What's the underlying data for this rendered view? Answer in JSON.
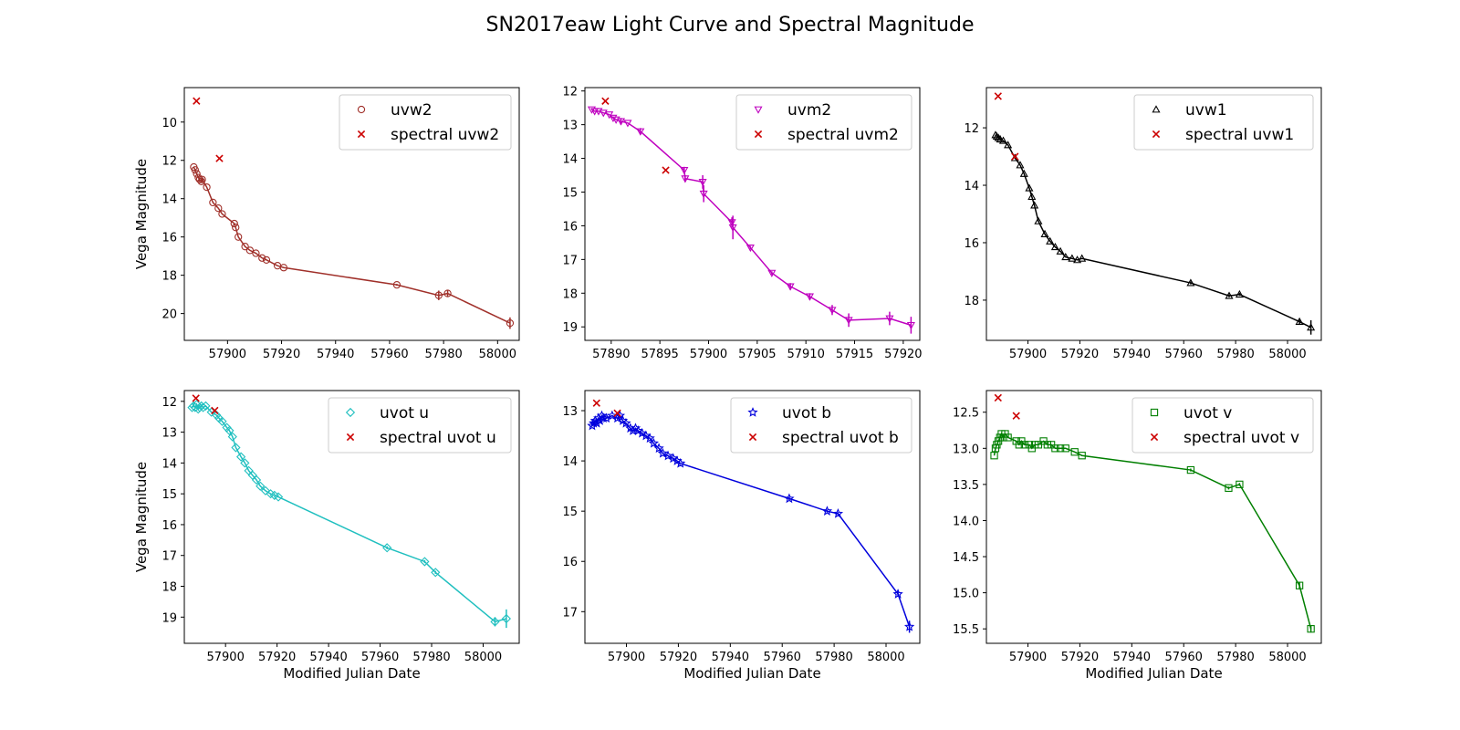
{
  "figure": {
    "title": "SN2017eaw Light Curve and Spectral Magnitude"
  },
  "chart_data": [
    {
      "type": "line",
      "xlabel": "",
      "ylabel": "Vega Magnitude",
      "xlim": [
        57884,
        58008
      ],
      "ylim": [
        21.4,
        8.2
      ],
      "y_inverted": true,
      "xticks": [
        57900,
        57920,
        57940,
        57960,
        57980,
        58000
      ],
      "yticks": [
        10,
        12,
        14,
        16,
        18,
        20
      ],
      "legend_position": "top-right",
      "series": [
        {
          "name": "uvw2",
          "color": "#a0302a",
          "marker": "circle",
          "x": [
            57887.5,
            57888.0,
            57888.6,
            57889.2,
            57889.7,
            57890.3,
            57890.6,
            57892.3,
            57894.6,
            57896.6,
            57898.0,
            57902.5,
            57903.0,
            57904.0,
            57906.5,
            57908.3,
            57910.5,
            57912.8,
            57914.4,
            57918.5,
            57920.8,
            57962.7,
            57978.2,
            57981.5,
            58004.6
          ],
          "y": [
            12.35,
            12.5,
            12.7,
            12.9,
            13.0,
            13.1,
            13.0,
            13.4,
            14.2,
            14.5,
            14.8,
            15.3,
            15.5,
            16.0,
            16.5,
            16.7,
            16.85,
            17.1,
            17.2,
            17.5,
            17.6,
            18.5,
            19.05,
            18.95,
            20.5
          ],
          "yerr": [
            0,
            0,
            0,
            0,
            0,
            0,
            0,
            0,
            0,
            0,
            0,
            0,
            0,
            0,
            0,
            0,
            0,
            0,
            0,
            0,
            0,
            0.05,
            0.25,
            0.15,
            0.3
          ]
        },
        {
          "name": "spectral uvw2",
          "color": "#cc0000",
          "marker": "x",
          "x": [
            57888.5,
            57897.0
          ],
          "y": [
            8.9,
            11.9
          ]
        }
      ]
    },
    {
      "type": "line",
      "xlabel": "",
      "ylabel": "",
      "xlim": [
        57887.3,
        57921.7
      ],
      "ylim": [
        19.4,
        11.9
      ],
      "y_inverted": true,
      "xticks": [
        57890,
        57895,
        57900,
        57905,
        57910,
        57915,
        57920
      ],
      "yticks": [
        12,
        13,
        14,
        15,
        16,
        17,
        18,
        19
      ],
      "legend_position": "top-right",
      "series": [
        {
          "name": "uvm2",
          "color": "#bf00bf",
          "marker": "triangle-down",
          "x": [
            57888.0,
            57888.3,
            57888.7,
            57889.2,
            57889.8,
            57890.2,
            57890.5,
            57891.0,
            57891.7,
            57893.0,
            57897.5,
            57897.6,
            57899.4,
            57899.5,
            57902.4,
            57902.5,
            57904.3,
            57906.5,
            57908.4,
            57910.4,
            57912.7,
            57914.4,
            57918.6,
            57920.8
          ],
          "y": [
            12.55,
            12.6,
            12.6,
            12.65,
            12.7,
            12.8,
            12.85,
            12.9,
            12.95,
            13.2,
            14.35,
            14.6,
            14.7,
            15.05,
            15.9,
            16.05,
            16.65,
            17.4,
            17.8,
            18.1,
            18.5,
            18.8,
            18.75,
            18.95
          ],
          "yerr": [
            0,
            0,
            0,
            0,
            0,
            0,
            0,
            0.1,
            0,
            0.1,
            0.1,
            0.1,
            0.2,
            0.25,
            0.15,
            0.35,
            0.05,
            0.05,
            0.1,
            0.1,
            0.15,
            0.2,
            0.2,
            0.25
          ]
        },
        {
          "name": "spectral uvm2",
          "color": "#cc0000",
          "marker": "x",
          "x": [
            57889.4,
            57895.6
          ],
          "y": [
            12.3,
            14.35
          ]
        }
      ]
    },
    {
      "type": "line",
      "xlabel": "",
      "ylabel": "",
      "xlim": [
        57884,
        58013
      ],
      "ylim": [
        19.4,
        10.6
      ],
      "y_inverted": true,
      "xticks": [
        57900,
        57920,
        57940,
        57960,
        57980,
        58000
      ],
      "yticks": [
        12,
        14,
        16,
        18
      ],
      "legend_position": "top-right",
      "series": [
        {
          "name": "uvw1",
          "color": "#000000",
          "marker": "triangle-up",
          "x": [
            57887.5,
            57888.0,
            57888.6,
            57889.3,
            57890.5,
            57892.3,
            57895.0,
            57897.0,
            57898.5,
            57900.5,
            57901.5,
            57902.5,
            57904.0,
            57906.5,
            57908.5,
            57910.5,
            57912.5,
            57914.5,
            57917.0,
            57919.0,
            57920.8,
            57962.7,
            57977.5,
            57981.5,
            58004.6,
            58009.0
          ],
          "y": [
            12.25,
            12.3,
            12.35,
            12.4,
            12.45,
            12.6,
            13.05,
            13.3,
            13.6,
            14.1,
            14.4,
            14.7,
            15.25,
            15.7,
            15.95,
            16.15,
            16.3,
            16.5,
            16.55,
            16.6,
            16.55,
            17.4,
            17.85,
            17.8,
            18.75,
            18.95
          ],
          "yerr": [
            0,
            0,
            0,
            0,
            0,
            0,
            0,
            0,
            0,
            0,
            0,
            0,
            0,
            0,
            0,
            0,
            0,
            0,
            0,
            0,
            0,
            0.05,
            0.05,
            0.05,
            0.1,
            0.25
          ]
        },
        {
          "name": "spectral uvw1",
          "color": "#cc0000",
          "marker": "x",
          "x": [
            57888.5,
            57895.0
          ],
          "y": [
            10.9,
            13.0
          ]
        }
      ]
    },
    {
      "type": "line",
      "xlabel": "Modified Julian Date",
      "ylabel": "Vega Magnitude",
      "xlim": [
        57884,
        58014
      ],
      "ylim": [
        19.85,
        11.65
      ],
      "y_inverted": true,
      "xticks": [
        57900,
        57920,
        57940,
        57960,
        57980,
        58000
      ],
      "yticks": [
        12,
        13,
        14,
        15,
        16,
        17,
        18,
        19
      ],
      "legend_position": "top-right",
      "series": [
        {
          "name": "uvot u",
          "color": "#1fbfbf",
          "marker": "diamond",
          "x": [
            57887.0,
            57887.6,
            57888.2,
            57888.8,
            57889.4,
            57890.0,
            57890.6,
            57891.3,
            57892.3,
            57894.5,
            57896.5,
            57897.5,
            57898.7,
            57900.5,
            57901.5,
            57902.7,
            57904.0,
            57906.0,
            57907.5,
            57909.0,
            57910.5,
            57912.0,
            57913.5,
            57915.5,
            57917.5,
            57919.0,
            57920.5,
            57962.7,
            57977.3,
            57981.5,
            58004.6,
            58009.0
          ],
          "y": [
            12.2,
            12.15,
            12.2,
            12.1,
            12.25,
            12.2,
            12.15,
            12.2,
            12.15,
            12.35,
            12.45,
            12.55,
            12.65,
            12.85,
            12.95,
            13.15,
            13.5,
            13.8,
            14.0,
            14.25,
            14.4,
            14.55,
            14.75,
            14.9,
            15.0,
            15.05,
            15.1,
            16.75,
            17.2,
            17.55,
            19.15,
            19.05
          ],
          "yerr": [
            0,
            0,
            0,
            0,
            0,
            0,
            0,
            0,
            0,
            0,
            0,
            0,
            0,
            0,
            0,
            0,
            0,
            0,
            0,
            0,
            0,
            0,
            0,
            0,
            0,
            0,
            0,
            0.05,
            0.05,
            0.05,
            0.15,
            0.3
          ]
        },
        {
          "name": "spectral uvot u",
          "color": "#cc0000",
          "marker": "x",
          "x": [
            57888.5,
            57895.8
          ],
          "y": [
            11.9,
            12.3
          ]
        }
      ]
    },
    {
      "type": "line",
      "xlabel": "Modified Julian Date",
      "ylabel": "",
      "xlim": [
        57884,
        58013
      ],
      "ylim": [
        17.63,
        12.6
      ],
      "y_inverted": true,
      "xticks": [
        57900,
        57920,
        57940,
        57960,
        57980,
        58000
      ],
      "yticks": [
        13,
        14,
        15,
        16,
        17
      ],
      "legend_position": "top-right",
      "series": [
        {
          "name": "uvot b",
          "color": "#0000dd",
          "marker": "star",
          "x": [
            57886.8,
            57887.4,
            57888.0,
            57888.6,
            57889.2,
            57889.8,
            57890.5,
            57891.2,
            57892.3,
            57894.5,
            57896.5,
            57897.5,
            57898.6,
            57899.8,
            57901.5,
            57902.5,
            57903.5,
            57904.5,
            57906.0,
            57907.5,
            57909.0,
            57910.5,
            57912.5,
            57914.0,
            57916.0,
            57918.0,
            57919.5,
            57920.8,
            57962.7,
            57977.3,
            57981.5,
            58004.6,
            58009.0
          ],
          "y": [
            13.3,
            13.25,
            13.2,
            13.25,
            13.15,
            13.2,
            13.1,
            13.15,
            13.15,
            13.1,
            13.15,
            13.1,
            13.2,
            13.25,
            13.35,
            13.4,
            13.35,
            13.4,
            13.45,
            13.5,
            13.55,
            13.65,
            13.75,
            13.85,
            13.9,
            13.95,
            14.0,
            14.05,
            14.75,
            15.0,
            15.05,
            16.65,
            17.3
          ],
          "yerr": [
            0,
            0,
            0,
            0,
            0,
            0,
            0,
            0,
            0,
            0,
            0,
            0,
            0,
            0,
            0,
            0,
            0,
            0,
            0,
            0,
            0,
            0,
            0,
            0,
            0,
            0,
            0,
            0,
            0.03,
            0.03,
            0.03,
            0.05,
            0.12
          ]
        },
        {
          "name": "spectral uvot b",
          "color": "#cc0000",
          "marker": "x",
          "x": [
            57888.5,
            57896.5
          ],
          "y": [
            12.85,
            13.05
          ]
        }
      ]
    },
    {
      "type": "line",
      "xlabel": "Modified Julian Date",
      "ylabel": "",
      "xlim": [
        57884,
        58013
      ],
      "ylim": [
        15.7,
        12.2
      ],
      "y_inverted": true,
      "xticks": [
        57900,
        57920,
        57940,
        57960,
        57980,
        58000
      ],
      "yticks": [
        12.5,
        13.0,
        13.5,
        14.0,
        14.5,
        15.0,
        15.5
      ],
      "legend_position": "top-right",
      "series": [
        {
          "name": "uvot v",
          "color": "#007f00",
          "marker": "square",
          "x": [
            57887.0,
            57887.5,
            57888.0,
            57888.6,
            57889.2,
            57889.8,
            57890.5,
            57891.2,
            57892.3,
            57895.5,
            57896.6,
            57897.5,
            57898.7,
            57900.5,
            57901.5,
            57902.7,
            57904.0,
            57906.0,
            57907.5,
            57909.0,
            57910.5,
            57912.5,
            57914.5,
            57918.0,
            57920.8,
            57962.7,
            57977.3,
            57981.5,
            58004.6,
            58009.0
          ],
          "y": [
            13.1,
            13.0,
            12.95,
            12.9,
            12.85,
            12.8,
            12.85,
            12.8,
            12.85,
            12.9,
            12.95,
            12.9,
            12.95,
            12.95,
            13.0,
            12.95,
            12.95,
            12.9,
            12.95,
            12.95,
            13.0,
            13.0,
            13.0,
            13.05,
            13.1,
            13.3,
            13.55,
            13.5,
            14.9,
            15.5
          ],
          "yerr": [
            0,
            0,
            0,
            0,
            0,
            0,
            0,
            0,
            0,
            0,
            0,
            0,
            0,
            0,
            0,
            0,
            0,
            0,
            0,
            0,
            0,
            0,
            0,
            0,
            0,
            0.02,
            0.02,
            0.02,
            0.05,
            0.05
          ]
        },
        {
          "name": "spectral uvot v",
          "color": "#cc0000",
          "marker": "x",
          "x": [
            57888.5,
            57895.5
          ],
          "y": [
            12.3,
            12.55
          ]
        }
      ]
    }
  ]
}
